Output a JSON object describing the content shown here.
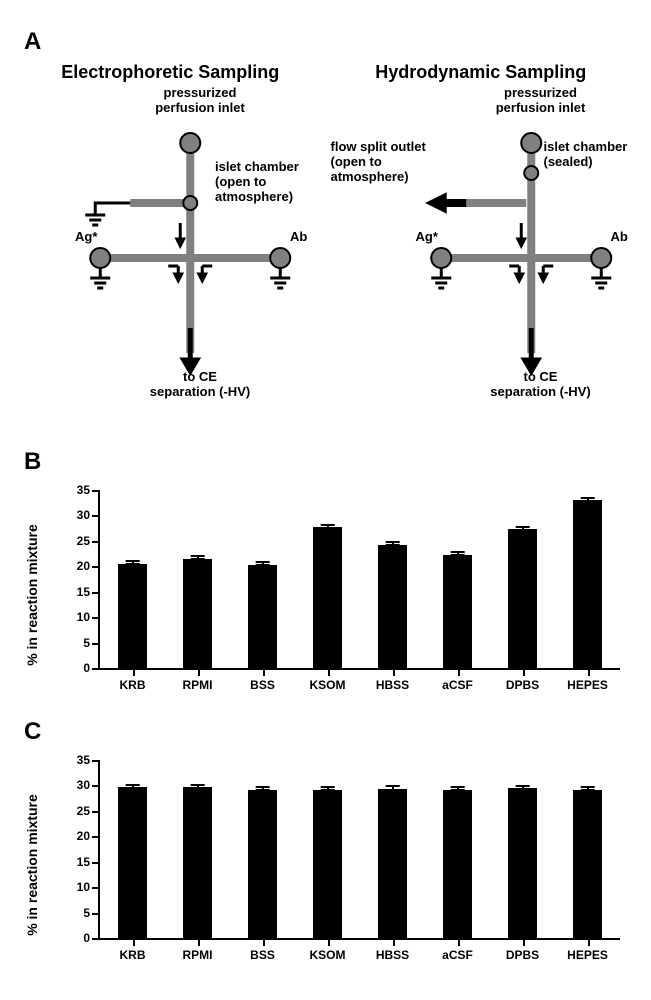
{
  "panelA": {
    "label": "A",
    "left": {
      "title": "Electrophoretic Sampling",
      "labels": {
        "top": "pressurized\nperfusion inlet",
        "chamber": "islet chamber\n(open to\natmosphere)",
        "ag": "Ag*",
        "ab": "Ab",
        "bottom": "to CE\nseparation (-HV)"
      }
    },
    "right": {
      "title": "Hydrodynamic Sampling",
      "labels": {
        "top": "pressurized\nperfusion inlet",
        "chamber": "islet chamber\n(sealed)",
        "split": "flow split outlet\n(open to\natmosphere)",
        "ag": "Ag*",
        "ab": "Ab",
        "bottom": "to CE\nseparation (-HV)"
      }
    },
    "colors": {
      "channel": "#808080",
      "node_fill": "#808080",
      "node_stroke": "#000000",
      "arrow": "#000000"
    }
  },
  "panelB": {
    "label": "B",
    "ylabel": "% in reaction mixture",
    "ylim": [
      0,
      35
    ],
    "ytick_step": 5,
    "categories": [
      "KRB",
      "RPMI",
      "BSS",
      "KSOM",
      "HBSS",
      "aCSF",
      "DPBS",
      "HEPES"
    ],
    "values": [
      20.5,
      21.5,
      20.3,
      27.7,
      24.2,
      22.3,
      27.3,
      33.0
    ],
    "errors": [
      0.3,
      0.3,
      0.3,
      0.3,
      0.3,
      0.3,
      0.3,
      0.3
    ],
    "bar_color": "#000000",
    "bar_width": 0.45,
    "label_fontsize": 12
  },
  "panelC": {
    "label": "C",
    "ylabel": "% in reaction mixture",
    "ylim": [
      0,
      35
    ],
    "ytick_step": 5,
    "categories": [
      "KRB",
      "RPMI",
      "BSS",
      "KSOM",
      "HBSS",
      "aCSF",
      "DPBS",
      "HEPES"
    ],
    "values": [
      29.6,
      29.6,
      29.2,
      29.2,
      29.3,
      29.2,
      29.4,
      29.2
    ],
    "errors": [
      0.3,
      0.3,
      0.3,
      0.3,
      0.3,
      0.3,
      0.3,
      0.3
    ],
    "bar_color": "#000000",
    "bar_width": 0.45,
    "label_fontsize": 12
  }
}
